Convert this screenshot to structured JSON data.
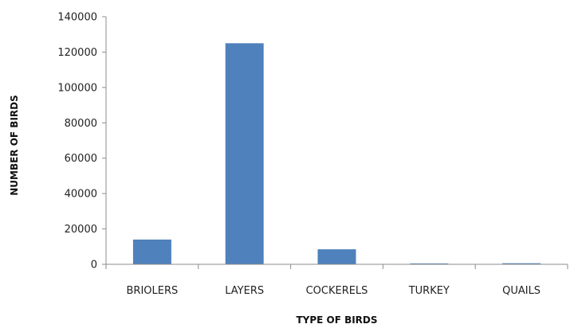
{
  "chart_data": {
    "type": "bar",
    "title": "",
    "xlabel": "TYPE OF BIRDS",
    "ylabel": "NUMBER OF BIRDS",
    "categories": [
      "BRIOLERS",
      "LAYERS",
      "COCKERELS",
      "TURKEY",
      "QUAILS"
    ],
    "values": [
      14000,
      125000,
      8500,
      500,
      600
    ],
    "ylim": [
      0,
      140000
    ],
    "yticks": [
      0,
      20000,
      40000,
      60000,
      80000,
      100000,
      120000,
      140000
    ],
    "grid": false,
    "legend": "none",
    "bar_color": "#4f81bd",
    "axis_color": "#8c8c8c"
  }
}
